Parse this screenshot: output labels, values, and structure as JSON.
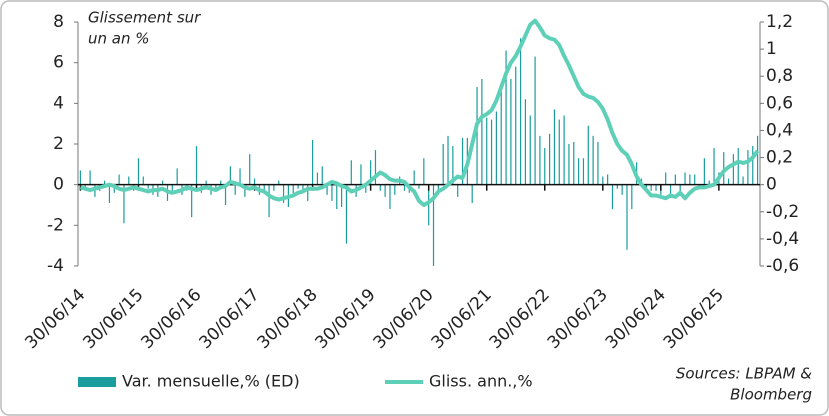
{
  "chart_data": {
    "type": "bar-line",
    "annotation_lines": [
      "Glissement sur",
      "un an %"
    ],
    "source_lines": [
      "Sources: LBPAM &",
      "Bloomberg"
    ],
    "categories": [
      "30/06/14",
      null,
      null,
      null,
      null,
      null,
      null,
      null,
      null,
      null,
      null,
      null,
      "30/06/15",
      null,
      null,
      null,
      null,
      null,
      null,
      null,
      null,
      null,
      null,
      null,
      "30/06/16",
      null,
      null,
      null,
      null,
      null,
      null,
      null,
      null,
      null,
      null,
      null,
      "30/06/17",
      null,
      null,
      null,
      null,
      null,
      null,
      null,
      null,
      null,
      null,
      null,
      "30/06/18",
      null,
      null,
      null,
      null,
      null,
      null,
      null,
      null,
      null,
      null,
      null,
      "30/06/19",
      null,
      null,
      null,
      null,
      null,
      null,
      null,
      null,
      null,
      null,
      null,
      "30/06/20",
      null,
      null,
      null,
      null,
      null,
      null,
      null,
      null,
      null,
      null,
      null,
      "30/06/21",
      null,
      null,
      null,
      null,
      null,
      null,
      null,
      null,
      null,
      null,
      null,
      "30/06/22",
      null,
      null,
      null,
      null,
      null,
      null,
      null,
      null,
      null,
      null,
      null,
      "30/06/23",
      null,
      null,
      null,
      null,
      null,
      null,
      null,
      null,
      null,
      null,
      null,
      "30/06/24",
      null,
      null,
      null,
      null,
      null,
      null,
      null,
      null,
      null,
      null,
      null,
      "30/06/25",
      null,
      null,
      null,
      null,
      null,
      null,
      null,
      null
    ],
    "series": [
      {
        "name": "Var. mensuelle,% (ED)",
        "color": "#1a9d9d",
        "type": "bar",
        "values": [
          0.7,
          -0.3,
          0.7,
          -0.6,
          -0.3,
          0.2,
          -0.9,
          -0.4,
          0.5,
          -1.9,
          0.4,
          -0.3,
          1.3,
          0.4,
          -0.2,
          -0.5,
          -0.6,
          0.2,
          -0.8,
          -0.3,
          0.8,
          -0.5,
          -0.3,
          -1.6,
          1.9,
          -0.4,
          0.2,
          -0.5,
          -0.3,
          0.2,
          -1.0,
          0.9,
          -0.5,
          0.8,
          -0.6,
          1.5,
          0.3,
          -0.5,
          -0.4,
          -1.6,
          -0.3,
          0.2,
          -0.9,
          -1.1,
          -0.5,
          -0.2,
          -0.4,
          -0.8,
          2.2,
          0.6,
          0.9,
          -0.5,
          -0.8,
          -1.2,
          -1.1,
          -2.9,
          1.2,
          -0.6,
          1.0,
          -0.4,
          1.2,
          1.7,
          -0.3,
          -0.6,
          -1.2,
          -0.5,
          0.4,
          -0.3,
          -0.4,
          0.7,
          -0.2,
          1.3,
          -2.0,
          -4.0,
          -0.5,
          2.0,
          2.4,
          1.9,
          -0.6,
          2.3,
          2.3,
          -0.9,
          4.8,
          5.2,
          3.3,
          3.2,
          3.6,
          4.8,
          6.6,
          5.2,
          5.8,
          7.2,
          4.2,
          3.4,
          6.3,
          2.4,
          1.8,
          2.5,
          3.7,
          3.2,
          3.4,
          2.0,
          2.1,
          1.3,
          1.3,
          2.9,
          2.4,
          2.1,
          0.4,
          0.5,
          -1.2,
          -0.2,
          -0.5,
          -3.2,
          -1.2,
          1.1,
          0.3,
          -0.2,
          -0.3,
          -0.3,
          -0.5,
          0.6,
          -0.6,
          0.5,
          -0.4,
          0.6,
          0.5,
          0.5,
          -0.1,
          1.3,
          0.2,
          1.8,
          0.6,
          1.6,
          0.3,
          1.5,
          1.8,
          0.4,
          1.7,
          1.9,
          2.4
        ]
      },
      {
        "name": "Gliss. ann.,%",
        "color": "#5fd0b8",
        "type": "line",
        "axis": "y2",
        "values": [
          -0.02,
          -0.03,
          -0.04,
          -0.03,
          -0.02,
          -0.01,
          0.0,
          -0.01,
          -0.03,
          -0.04,
          -0.03,
          -0.02,
          -0.03,
          -0.04,
          -0.05,
          -0.04,
          -0.04,
          -0.03,
          -0.05,
          -0.06,
          -0.05,
          -0.04,
          -0.02,
          -0.03,
          -0.04,
          -0.03,
          -0.02,
          -0.03,
          -0.04,
          -0.02,
          -0.01,
          0.02,
          0.01,
          0.0,
          -0.02,
          -0.03,
          -0.02,
          -0.04,
          -0.05,
          -0.08,
          -0.1,
          -0.11,
          -0.1,
          -0.09,
          -0.08,
          -0.06,
          -0.05,
          -0.03,
          -0.03,
          -0.03,
          -0.02,
          0.0,
          0.02,
          0.01,
          -0.01,
          -0.02,
          -0.05,
          -0.04,
          -0.02,
          0.0,
          0.03,
          0.06,
          0.09,
          0.07,
          0.04,
          0.03,
          0.03,
          0.02,
          -0.02,
          -0.05,
          -0.12,
          -0.15,
          -0.13,
          -0.1,
          -0.05,
          -0.03,
          0.0,
          0.03,
          0.06,
          0.05,
          0.15,
          0.3,
          0.45,
          0.5,
          0.52,
          0.55,
          0.62,
          0.72,
          0.82,
          0.9,
          0.95,
          1.02,
          1.1,
          1.18,
          1.21,
          1.16,
          1.1,
          1.08,
          1.07,
          1.03,
          0.95,
          0.88,
          0.8,
          0.72,
          0.67,
          0.65,
          0.64,
          0.61,
          0.56,
          0.48,
          0.38,
          0.3,
          0.25,
          0.22,
          0.15,
          0.06,
          0.0,
          -0.04,
          -0.08,
          -0.08,
          -0.09,
          -0.1,
          -0.08,
          -0.09,
          -0.06,
          -0.1,
          -0.06,
          -0.03,
          -0.02,
          -0.02,
          -0.01,
          0.0,
          0.05,
          0.1,
          0.13,
          0.15,
          0.17,
          0.16,
          0.17,
          0.2,
          0.25
        ]
      }
    ],
    "ylim": [
      -4,
      8
    ],
    "yticks": [
      -4,
      -2,
      0,
      2,
      4,
      6,
      8
    ],
    "y2lim": [
      -0.6,
      1.2
    ],
    "y2ticks": [
      {
        "value": -0.6,
        "label": "-0,6"
      },
      {
        "value": -0.4,
        "label": "-0,4"
      },
      {
        "value": -0.2,
        "label": "-0,2"
      },
      0,
      {
        "value": 0.2,
        "label": "0,2"
      },
      {
        "value": 0.4,
        "label": "0,4"
      },
      {
        "value": 0.6,
        "label": "0,6"
      },
      {
        "value": 0.8,
        "label": "0,8"
      },
      1,
      {
        "value": 1.2,
        "label": "1,2"
      }
    ],
    "grid": false,
    "legend": "bottom-left"
  }
}
